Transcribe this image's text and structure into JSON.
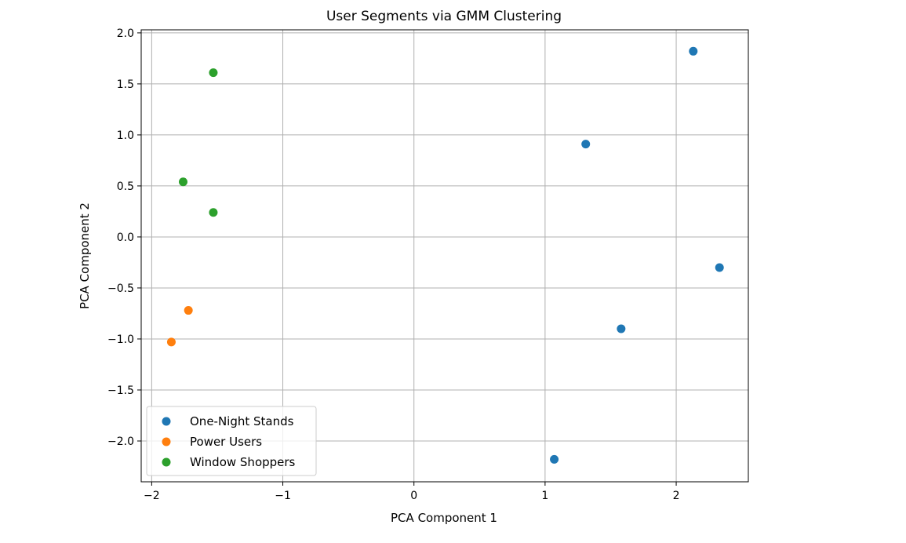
{
  "chart_data": {
    "type": "scatter",
    "title": "User Segments via GMM Clustering",
    "xlabel": "PCA Component 1",
    "ylabel": "PCA Component 2",
    "xlim": [
      -2.08,
      2.55
    ],
    "ylim": [
      -2.4,
      2.03
    ],
    "xticks": [
      -2,
      -1,
      0,
      1,
      2
    ],
    "yticks": [
      -2.0,
      -1.5,
      -1.0,
      -0.5,
      0.0,
      0.5,
      1.0,
      1.5,
      2.0
    ],
    "xtick_labels": [
      "−2",
      "−1",
      "0",
      "1",
      "2"
    ],
    "ytick_labels": [
      "−2.0",
      "−1.5",
      "−1.0",
      "−0.5",
      "0.0",
      "0.5",
      "1.0",
      "1.5",
      "2.0"
    ],
    "grid": true,
    "legend_position": "lower-left",
    "series": [
      {
        "name": "One-Night Stands",
        "color": "#1f77b4",
        "points": [
          [
            2.13,
            1.82
          ],
          [
            1.31,
            0.91
          ],
          [
            2.33,
            -0.3
          ],
          [
            1.58,
            -0.9
          ],
          [
            1.07,
            -2.18
          ]
        ]
      },
      {
        "name": "Power Users",
        "color": "#ff7f0e",
        "points": [
          [
            -1.72,
            -0.72
          ],
          [
            -1.85,
            -1.03
          ]
        ]
      },
      {
        "name": "Window Shoppers",
        "color": "#2ca02c",
        "points": [
          [
            -1.53,
            1.61
          ],
          [
            -1.76,
            0.54
          ],
          [
            -1.53,
            0.24
          ]
        ]
      }
    ]
  }
}
